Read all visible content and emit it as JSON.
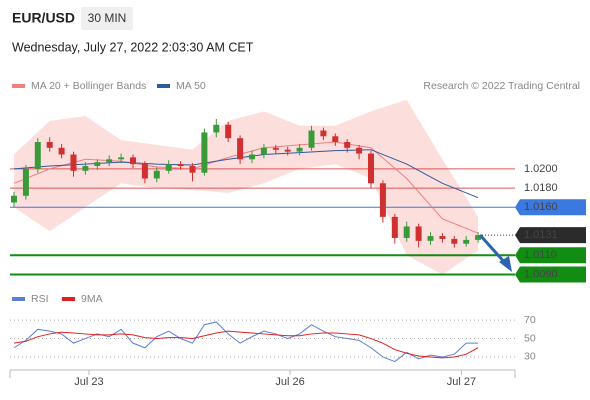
{
  "header": {
    "symbol": "EUR/USD",
    "interval": "30 MIN",
    "timestamp": "Wednesday, July 27, 2022 2:03:30 AM CET"
  },
  "credit": "Research © 2022 Trading Central",
  "chart_data": [
    {
      "type": "candlestick",
      "up_color": "#3a9a3a",
      "down_color": "#d03030",
      "ylim": [
        1.0079,
        1.0277
      ],
      "candles": [
        [
          1.0165,
          1.0176,
          1.016,
          1.0172
        ],
        [
          1.0172,
          1.0204,
          1.0168,
          1.02
        ],
        [
          1.02,
          1.0232,
          1.0196,
          1.0228
        ],
        [
          1.0228,
          1.0233,
          1.0218,
          1.0222
        ],
        [
          1.0222,
          1.0226,
          1.0211,
          1.0215
        ],
        [
          1.0215,
          1.0218,
          1.0192,
          1.0198
        ],
        [
          1.0198,
          1.0207,
          1.0194,
          1.0203
        ],
        [
          1.0203,
          1.021,
          1.0199,
          1.0207
        ],
        [
          1.0207,
          1.0214,
          1.0203,
          1.021
        ],
        [
          1.021,
          1.0216,
          1.0206,
          1.0212
        ],
        [
          1.0212,
          1.0215,
          1.0201,
          1.0205
        ],
        [
          1.0205,
          1.0208,
          1.0185,
          1.019
        ],
        [
          1.019,
          1.0202,
          1.0186,
          1.0198
        ],
        [
          1.0198,
          1.0209,
          1.0195,
          1.0205
        ],
        [
          1.0205,
          1.0208,
          1.0199,
          1.0203
        ],
        [
          1.0203,
          1.0206,
          1.0187,
          1.0196
        ],
        [
          1.0196,
          1.0242,
          1.0193,
          1.0238
        ],
        [
          1.0238,
          1.0252,
          1.0233,
          1.0246
        ],
        [
          1.0246,
          1.0249,
          1.0228,
          1.0232
        ],
        [
          1.0232,
          1.0235,
          1.0205,
          1.021
        ],
        [
          1.021,
          1.0219,
          1.0206,
          1.0215
        ],
        [
          1.0215,
          1.0226,
          1.0211,
          1.0222
        ],
        [
          1.0222,
          1.0225,
          1.0216,
          1.022
        ],
        [
          1.022,
          1.0223,
          1.0214,
          1.0218
        ],
        [
          1.0218,
          1.0226,
          1.0214,
          1.0222
        ],
        [
          1.0222,
          1.0245,
          1.0219,
          1.024
        ],
        [
          1.024,
          1.0243,
          1.023,
          1.0234
        ],
        [
          1.0234,
          1.0237,
          1.0224,
          1.0228
        ],
        [
          1.0228,
          1.0231,
          1.0217,
          1.0222
        ],
        [
          1.0222,
          1.0225,
          1.021,
          1.0216
        ],
        [
          1.0216,
          1.0219,
          1.018,
          1.0185
        ],
        [
          1.0185,
          1.0188,
          1.0144,
          1.015
        ],
        [
          1.015,
          1.0153,
          1.0122,
          1.0128
        ],
        [
          1.0128,
          1.0145,
          1.0124,
          1.014
        ],
        [
          1.014,
          1.0143,
          1.0118,
          1.0125
        ],
        [
          1.0125,
          1.0134,
          1.0121,
          1.013
        ],
        [
          1.013,
          1.0133,
          1.0123,
          1.0127
        ],
        [
          1.0127,
          1.013,
          1.0118,
          1.0122
        ],
        [
          1.0122,
          1.013,
          1.0119,
          1.0126
        ],
        [
          1.0126,
          1.0134,
          1.0123,
          1.0131
        ]
      ],
      "overlays": {
        "x": [
          0,
          3,
          6,
          9,
          12,
          15,
          18,
          21,
          24,
          27,
          30,
          33,
          36,
          39
        ],
        "series": [
          {
            "name": "MA 20 + Bollinger Bands",
            "color": "#f07f7f",
            "band_color": "#fbd3d0",
            "values": [
              1.0185,
              1.02,
              1.021,
              1.0208,
              1.0202,
              1.02,
              1.0212,
              1.0222,
              1.0225,
              1.0228,
              1.0222,
              1.019,
              1.0148,
              1.0133
            ],
            "upper": [
              1.0215,
              1.025,
              1.0255,
              1.023,
              1.0225,
              1.022,
              1.025,
              1.026,
              1.0245,
              1.0245,
              1.026,
              1.0272,
              1.021,
              1.015
            ],
            "lower": [
              1.016,
              1.0135,
              1.016,
              1.0185,
              1.018,
              1.0178,
              1.0175,
              1.0185,
              1.02,
              1.0205,
              1.019,
              1.011,
              1.009,
              1.0115
            ]
          },
          {
            "name": "MA 50",
            "color": "#2e5a9c",
            "values": [
              1.02,
              1.0203,
              1.0205,
              1.0207,
              1.0205,
              1.0204,
              1.021,
              1.0215,
              1.0217,
              1.0219,
              1.022,
              1.0205,
              1.0185,
              1.017
            ]
          }
        ]
      },
      "levels": [
        {
          "value": 1.02,
          "label": "1.0200",
          "kind": "resistance",
          "color": "#e05555"
        },
        {
          "value": 1.018,
          "label": "1.0180",
          "kind": "resistance",
          "color": "#e05555"
        },
        {
          "value": 1.016,
          "label": "1.0160",
          "kind": "pivot",
          "color": "#3b78e0"
        },
        {
          "value": 1.0131,
          "label": "1.0131",
          "kind": "last",
          "color": "#2b2b2b"
        },
        {
          "value": 1.011,
          "label": "1.0110",
          "kind": "support",
          "color": "#128c12"
        },
        {
          "value": 1.009,
          "label": "1.0090",
          "kind": "support",
          "color": "#128c12"
        }
      ],
      "xticks": [
        {
          "value": 6.3,
          "label": "Jul 23"
        },
        {
          "value": 23.2,
          "label": "Jul 26"
        },
        {
          "value": 37.6,
          "label": "Jul 27"
        }
      ]
    },
    {
      "type": "line",
      "ylim": [
        18,
        81
      ],
      "yticks": [
        70,
        50,
        30
      ],
      "grid": true,
      "series": [
        {
          "name": "RSI",
          "color": "#5b7fd6",
          "values": [
            40,
            48,
            60,
            58,
            55,
            45,
            50,
            55,
            52,
            60,
            45,
            40,
            52,
            58,
            50,
            45,
            65,
            68,
            55,
            45,
            52,
            58,
            55,
            50,
            55,
            65,
            58,
            52,
            50,
            48,
            40,
            30,
            25,
            35,
            28,
            32,
            30,
            33,
            45,
            45
          ]
        },
        {
          "name": "9MA",
          "color": "#e02020",
          "values": [
            45,
            47,
            52,
            55,
            57,
            56,
            55,
            54,
            54,
            55,
            54,
            51,
            50,
            51,
            51,
            50,
            53,
            56,
            58,
            57,
            56,
            55,
            54,
            53,
            53,
            55,
            56,
            56,
            55,
            54,
            50,
            45,
            38,
            34,
            31,
            30,
            29,
            30,
            33,
            40
          ]
        }
      ]
    }
  ]
}
